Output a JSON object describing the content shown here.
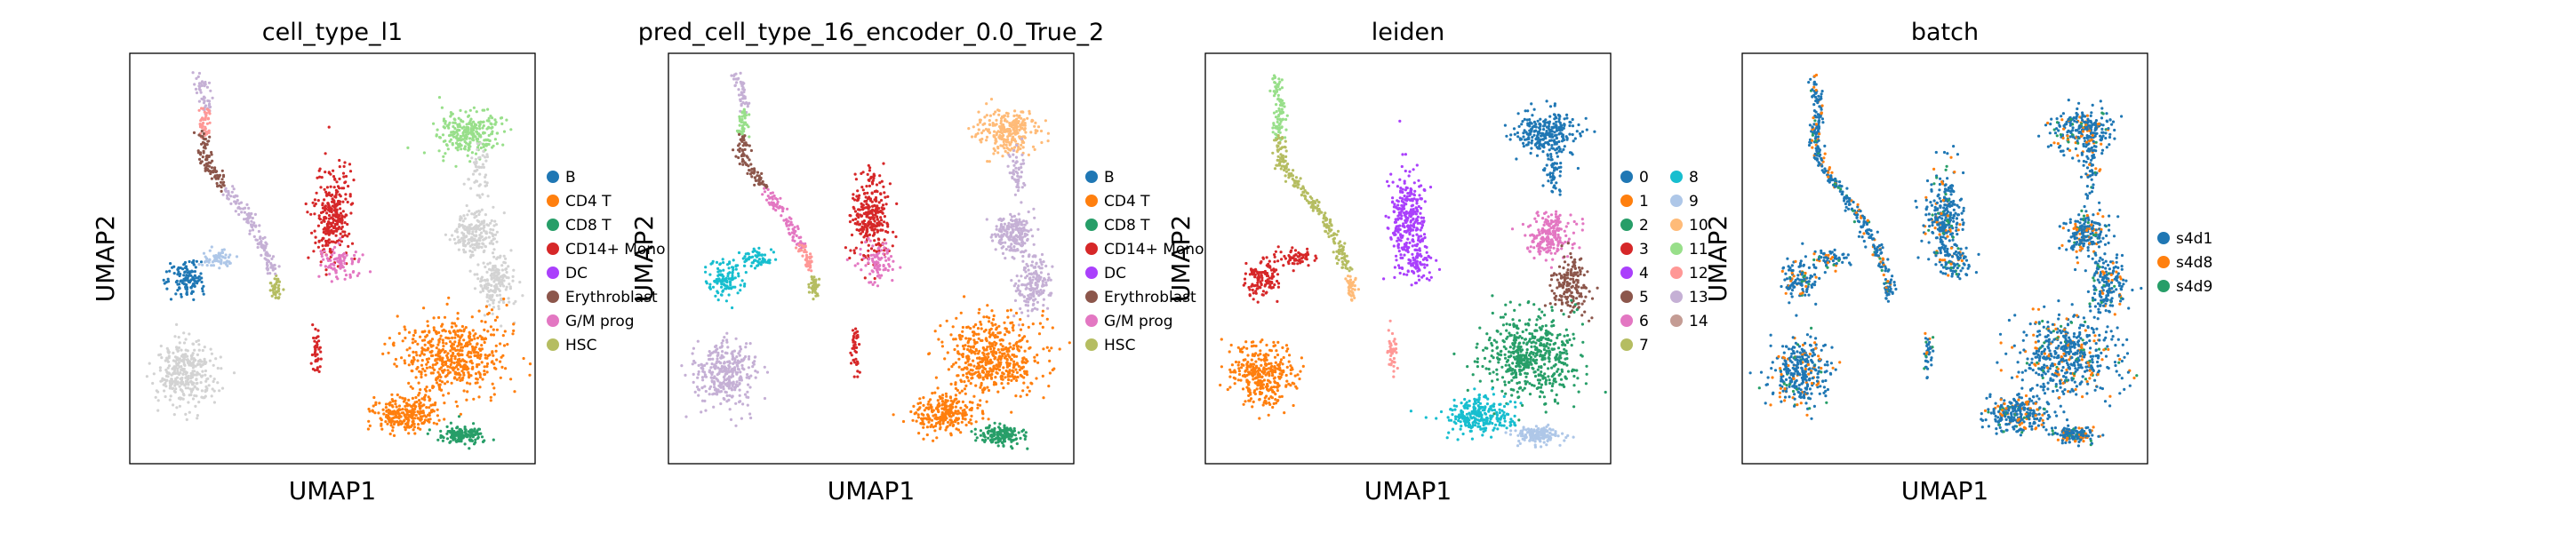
{
  "chart_data": [
    {
      "type": "scatter",
      "title": "cell_type_l1",
      "xlabel": "UMAP1",
      "ylabel": "UMAP2",
      "legend_position": "right",
      "legend": [
        {
          "label": "B",
          "color": "#1f77b4"
        },
        {
          "label": "CD4 T",
          "color": "#ff7f0e"
        },
        {
          "label": "CD8 T",
          "color": "#279e68"
        },
        {
          "label": "CD14+ Mono",
          "color": "#d62728"
        },
        {
          "label": "DC",
          "color": "#aa40fc"
        },
        {
          "label": "Erythroblast",
          "color": "#8c564b"
        },
        {
          "label": "G/M prog",
          "color": "#e377c2"
        },
        {
          "label": "HSC",
          "color": "#b5bd61"
        }
      ]
    },
    {
      "type": "scatter",
      "title": "pred_cell_type_16_encoder_0.0_True_2",
      "xlabel": "UMAP1",
      "ylabel": "UMAP2",
      "legend_position": "right",
      "legend": [
        {
          "label": "B",
          "color": "#1f77b4"
        },
        {
          "label": "CD4 T",
          "color": "#ff7f0e"
        },
        {
          "label": "CD8 T",
          "color": "#279e68"
        },
        {
          "label": "CD14+ Mono",
          "color": "#d62728"
        },
        {
          "label": "DC",
          "color": "#aa40fc"
        },
        {
          "label": "Erythroblast",
          "color": "#8c564b"
        },
        {
          "label": "G/M prog",
          "color": "#e377c2"
        },
        {
          "label": "HSC",
          "color": "#b5bd61"
        }
      ]
    },
    {
      "type": "scatter",
      "title": "leiden",
      "xlabel": "UMAP1",
      "ylabel": "UMAP2",
      "legend_position": "right",
      "legend": [
        {
          "label": "0",
          "color": "#1f77b4"
        },
        {
          "label": "1",
          "color": "#ff7f0e"
        },
        {
          "label": "2",
          "color": "#279e68"
        },
        {
          "label": "3",
          "color": "#d62728"
        },
        {
          "label": "4",
          "color": "#aa40fc"
        },
        {
          "label": "5",
          "color": "#8c564b"
        },
        {
          "label": "6",
          "color": "#e377c2"
        },
        {
          "label": "7",
          "color": "#b5bd61"
        },
        {
          "label": "8",
          "color": "#17becf"
        },
        {
          "label": "9",
          "color": "#aec7e8"
        },
        {
          "label": "10",
          "color": "#ffbb78"
        },
        {
          "label": "11",
          "color": "#98df8a"
        },
        {
          "label": "12",
          "color": "#ff9896"
        },
        {
          "label": "13",
          "color": "#c5b0d5"
        },
        {
          "label": "14",
          "color": "#c49c94"
        }
      ]
    },
    {
      "type": "scatter",
      "title": "batch",
      "xlabel": "UMAP1",
      "ylabel": "UMAP2",
      "legend_position": "right",
      "legend": [
        {
          "label": "s4d1",
          "color": "#1f77b4"
        },
        {
          "label": "s4d8",
          "color": "#ff7f0e"
        },
        {
          "label": "s4d9",
          "color": "#279e68"
        }
      ]
    }
  ]
}
